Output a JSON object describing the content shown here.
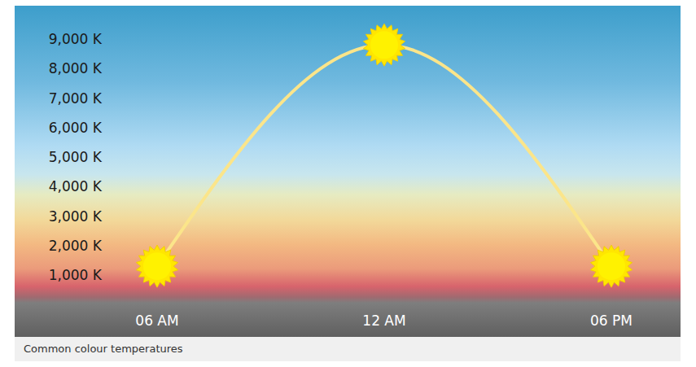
{
  "chart_data": {
    "type": "line",
    "categories": [
      "06 AM",
      "12 AM",
      "06 PM"
    ],
    "values": [
      1300,
      8800,
      1300
    ],
    "color": "#fbe58a",
    "marker": "star",
    "ylim": [
      1000,
      9000
    ],
    "yticks": [
      {
        "value": 1000,
        "label": "1,000 K"
      },
      {
        "value": 2000,
        "label": "2,000 K"
      },
      {
        "value": 3000,
        "label": "3,000 K"
      },
      {
        "value": 4000,
        "label": "4,000 K"
      },
      {
        "value": 5000,
        "label": "5,000 K"
      },
      {
        "value": 6000,
        "label": "6,000 K"
      },
      {
        "value": 7000,
        "label": "7,000 K"
      },
      {
        "value": 8000,
        "label": "8,000 K"
      },
      {
        "value": 9000,
        "label": "9,000 K"
      }
    ],
    "grid": false,
    "caption": "Common colour temperatures"
  }
}
